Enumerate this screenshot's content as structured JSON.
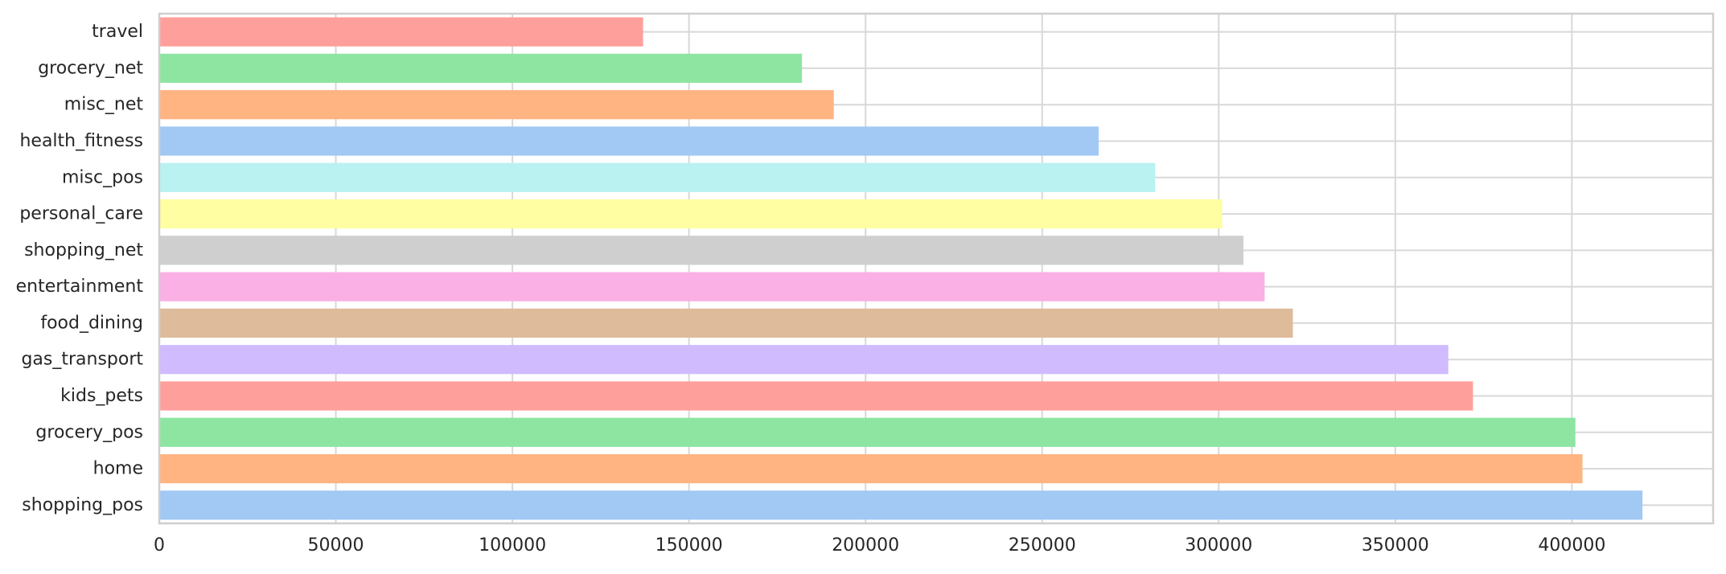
{
  "chart_data": {
    "type": "bar",
    "orientation": "horizontal",
    "title": "",
    "xlabel": "",
    "ylabel": "",
    "categories": [
      "shopping_pos",
      "home",
      "grocery_pos",
      "kids_pets",
      "gas_transport",
      "food_dining",
      "entertainment",
      "shopping_net",
      "personal_care",
      "misc_pos",
      "health_fitness",
      "misc_net",
      "grocery_net",
      "travel"
    ],
    "values": [
      420000,
      403000,
      401000,
      372000,
      365000,
      321000,
      313000,
      307000,
      301000,
      282000,
      266000,
      191000,
      182000,
      137000
    ],
    "colors": [
      "#a1c9f4",
      "#ffb482",
      "#8de5a1",
      "#ff9f9b",
      "#d0bbff",
      "#debb9b",
      "#fab0e4",
      "#cfcfcf",
      "#fffea3",
      "#b9f2f0",
      "#a1c9f4",
      "#ffb482",
      "#8de5a1",
      "#ff9f9b"
    ],
    "xlim": [
      0,
      440000
    ],
    "xticks": [
      0,
      50000,
      100000,
      150000,
      200000,
      250000,
      300000,
      350000,
      400000
    ],
    "xtick_labels": [
      "0",
      "50000",
      "100000",
      "150000",
      "200000",
      "250000",
      "300000",
      "350000",
      "400000"
    ],
    "grid": true,
    "legend": "none"
  }
}
